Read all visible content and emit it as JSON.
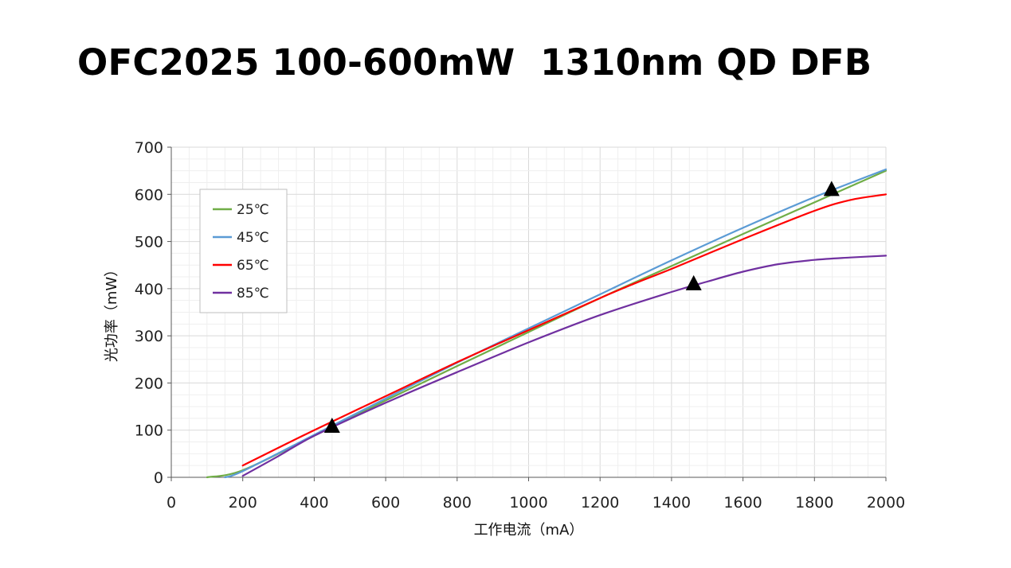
{
  "title": "OFC2025 100-600mW  1310nm QD DFB",
  "chart_data": {
    "type": "line",
    "xlabel": "工作电流（mA）",
    "ylabel": "光功率（mW）",
    "xlim": [
      0,
      2000
    ],
    "ylim": [
      0,
      700
    ],
    "xticks": [
      0,
      200,
      400,
      600,
      800,
      1000,
      1200,
      1400,
      1600,
      1800,
      2000
    ],
    "yticks": [
      0,
      100,
      200,
      300,
      400,
      500,
      600,
      700
    ],
    "grid": true,
    "legend_position": "top-left",
    "series": [
      {
        "name": "25℃",
        "color": "#70ad47",
        "x": [
          100,
          200,
          400,
          600,
          800,
          1000,
          1200,
          1400,
          1600,
          1800,
          2000
        ],
        "y": [
          0,
          15,
          88,
          163,
          236,
          308,
          380,
          448,
          516,
          583,
          650
        ]
      },
      {
        "name": "45℃",
        "color": "#5b9bd5",
        "x": [
          150,
          200,
          400,
          600,
          800,
          1000,
          1200,
          1400,
          1600,
          1800,
          2000
        ],
        "y": [
          0,
          13,
          90,
          167,
          243,
          316,
          388,
          460,
          529,
          594,
          653
        ]
      },
      {
        "name": "65℃",
        "color": "#ff0000",
        "x": [
          200,
          400,
          600,
          800,
          1000,
          1200,
          1300,
          1400,
          1600,
          1800,
          1900,
          2000
        ],
        "y": [
          25,
          100,
          172,
          244,
          312,
          380,
          412,
          442,
          505,
          565,
          588,
          600
        ]
      },
      {
        "name": "85℃",
        "color": "#7030a0",
        "x": [
          200,
          300,
          400,
          600,
          800,
          1000,
          1200,
          1400,
          1500,
          1600,
          1700,
          1800,
          1900,
          2000
        ],
        "y": [
          3,
          45,
          88,
          158,
          223,
          286,
          344,
          393,
          415,
          436,
          452,
          461,
          466,
          470
        ]
      }
    ],
    "markers": [
      {
        "symbol": "triangle",
        "color": "#000000",
        "x": 450,
        "y": 108
      },
      {
        "symbol": "triangle",
        "color": "#000000",
        "x": 1462,
        "y": 410
      },
      {
        "symbol": "triangle",
        "color": "#000000",
        "x": 1848,
        "y": 610
      }
    ]
  }
}
